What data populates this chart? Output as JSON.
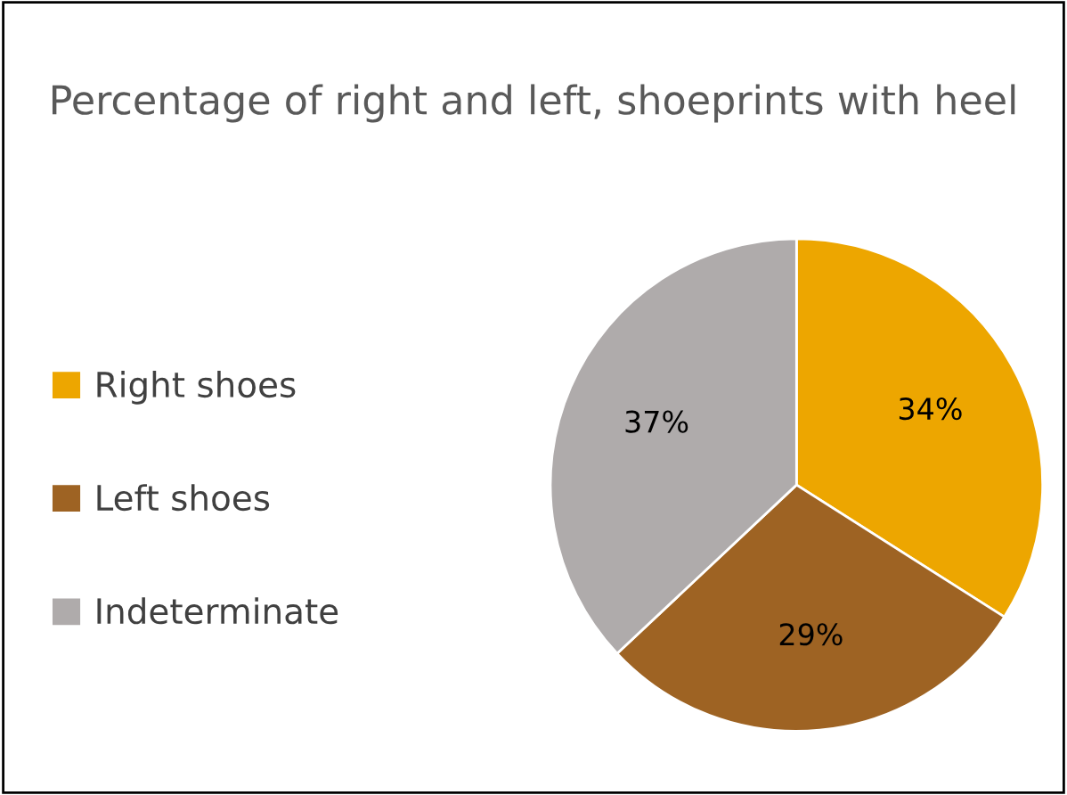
{
  "chart_data": {
    "type": "pie",
    "title": "Percentage of right and left, shoeprints with heel",
    "categories": [
      "Right shoes",
      "Left shoes",
      "Indeterminate"
    ],
    "values": [
      34,
      29,
      37
    ],
    "colors": [
      "#eda600",
      "#9e6323",
      "#afabab"
    ],
    "value_labels": [
      "34%",
      "29%",
      "37%"
    ],
    "legend": "left"
  }
}
